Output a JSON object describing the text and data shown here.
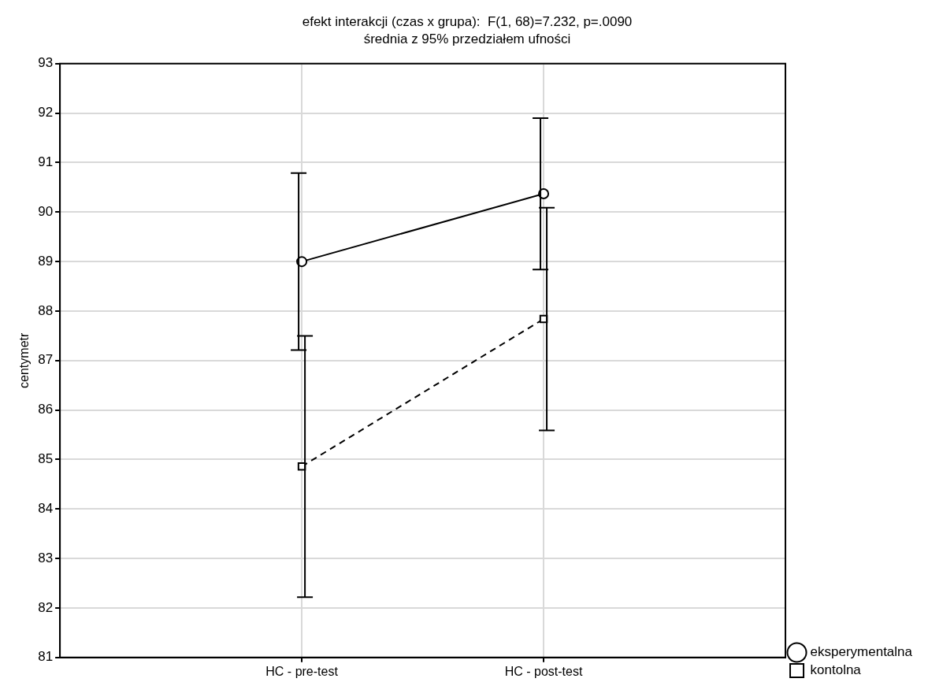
{
  "chart_data": {
    "type": "line",
    "title": "efekt interakcji (czas x grupa):  F(1, 68)=7.232, p=.0090",
    "subtitle": "średnia z 95% przedziałem ufności",
    "ylabel": "centymetr",
    "categories": [
      "HC - pre-test",
      "HC - post-test"
    ],
    "series": [
      {
        "name": "eksperymentalna",
        "color": "#000000",
        "values": [
          89.0,
          90.37
        ],
        "errors": [
          1.79,
          1.53
        ],
        "marker": "circle",
        "line_style": "solid"
      },
      {
        "name": "kontolna",
        "color": "#000000",
        "values": [
          84.86,
          87.84
        ],
        "errors": [
          2.64,
          2.25
        ],
        "marker": "square",
        "line_style": "dashed"
      }
    ],
    "ylim": [
      81,
      93
    ],
    "yticks": [
      81,
      82,
      83,
      84,
      85,
      86,
      87,
      88,
      89,
      90,
      91,
      92,
      93
    ],
    "grid": true,
    "legend": "bottom right"
  }
}
